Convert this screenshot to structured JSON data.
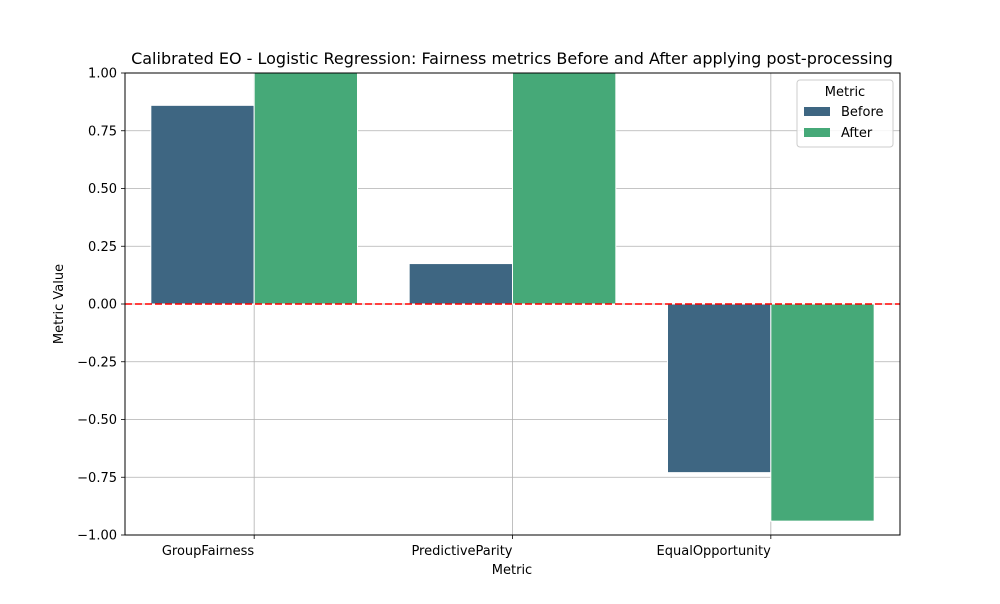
{
  "chart_data": {
    "type": "bar",
    "title": "Calibrated EO - Logistic Regression: Fairness metrics Before and After applying post-processing",
    "xlabel": "Metric",
    "ylabel": "Metric Value",
    "categories": [
      "GroupFairness",
      "PredictiveParity",
      "EqualOpportunity"
    ],
    "series": [
      {
        "name": "Before",
        "values": [
          0.86,
          0.175,
          -0.73
        ],
        "color": "#3e6682"
      },
      {
        "name": "After",
        "values": [
          1.0,
          1.0,
          -0.94
        ],
        "color": "#46a978"
      }
    ],
    "ylim": [
      -1.0,
      1.0
    ],
    "yticks": [
      -1.0,
      -0.75,
      -0.5,
      -0.25,
      0.0,
      0.25,
      0.5,
      0.75,
      1.0
    ],
    "ytick_labels": [
      "−1.00",
      "−0.75",
      "−0.50",
      "−0.25",
      "0.00",
      "0.25",
      "0.50",
      "0.75",
      "1.00"
    ],
    "reference_line": {
      "y": 0.0,
      "color": "#ff0000",
      "style": "dashed"
    },
    "grid": true,
    "legend": {
      "title": "Metric",
      "placement": "top-right"
    }
  }
}
